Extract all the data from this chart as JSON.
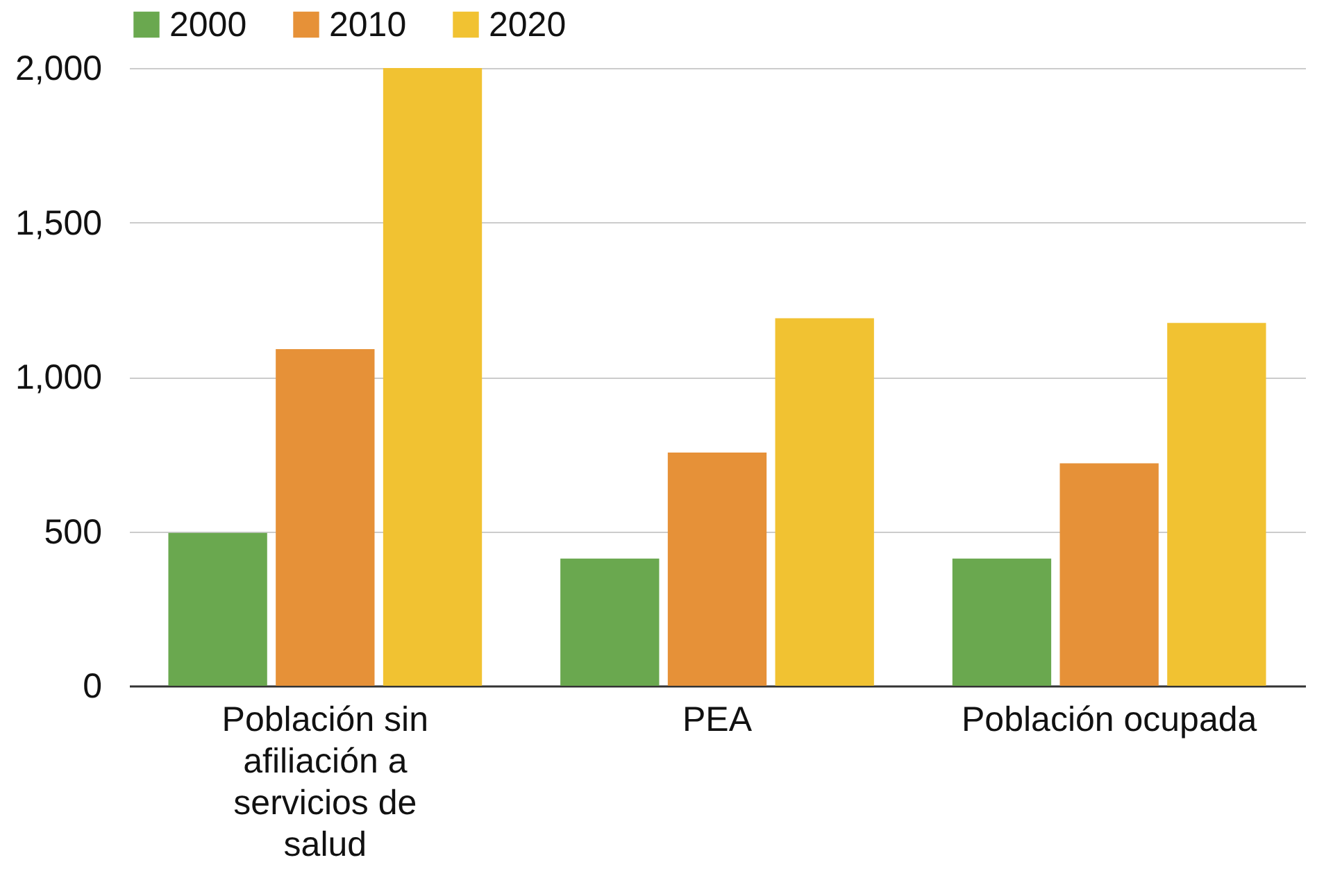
{
  "chart_data": {
    "type": "bar",
    "categories": [
      "Población sin afiliación a servicios de salud",
      "PEA",
      "Población ocupada"
    ],
    "series": [
      {
        "name": "2000",
        "color": "#6aa84f",
        "values": [
          495,
          412,
          412
        ]
      },
      {
        "name": "2010",
        "color": "#e69138",
        "values": [
          1090,
          755,
          720
        ]
      },
      {
        "name": "2020",
        "color": "#f1c232",
        "values": [
          2000,
          1190,
          1175
        ]
      }
    ],
    "ylim": [
      0,
      2000
    ],
    "yticks": [
      {
        "value": 0,
        "label": "0"
      },
      {
        "value": 500,
        "label": "500"
      },
      {
        "value": 1000,
        "label": "1,000"
      },
      {
        "value": 1500,
        "label": "1,500"
      },
      {
        "value": 2000,
        "label": "2,000"
      }
    ],
    "grid": "y",
    "legend": "top"
  }
}
